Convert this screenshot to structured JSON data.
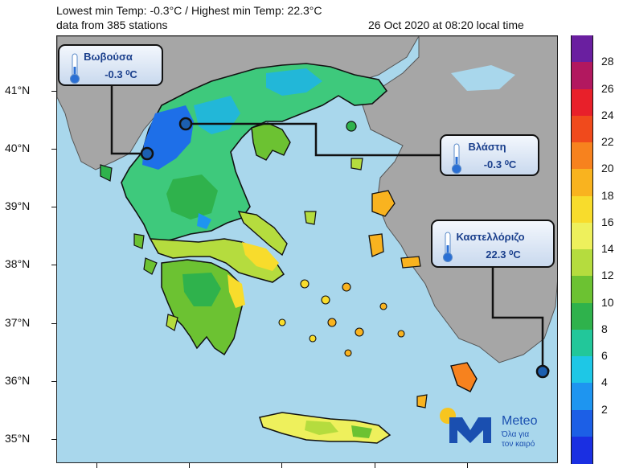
{
  "header": {
    "line1": "Lowest min Temp: -0.3°C / Highest min Temp: 22.3°C",
    "line2": "data from 385 stations",
    "timestamp": "26 Oct 2020 at 08:20 local time"
  },
  "axis": {
    "lat_labels": [
      "41°N",
      "40°N",
      "39°N",
      "38°N",
      "37°N",
      "36°N",
      "35°N"
    ]
  },
  "callouts": [
    {
      "name": "Βωβούσα",
      "value": "-0.3 ⁰C"
    },
    {
      "name": "Βλάστη",
      "value": "-0.3 ⁰C"
    },
    {
      "name": "Καστελλόριζο",
      "value": "22.3 ⁰C"
    }
  ],
  "colorbar": {
    "labels": [
      "28",
      "26",
      "24",
      "22",
      "20",
      "18",
      "16",
      "14",
      "12",
      "10",
      "8",
      "6",
      "4",
      "2"
    ],
    "colors": [
      "#6a1fa0",
      "#b2185f",
      "#e8202a",
      "#f04a1c",
      "#f7821e",
      "#f9b31f",
      "#f8dc2c",
      "#eef05c",
      "#b5dc3e",
      "#6cc232",
      "#2fb24c",
      "#22c79a",
      "#1ec7e6",
      "#1e95f0",
      "#1c5fe6",
      "#1a2fe2"
    ]
  },
  "logo": {
    "brand": "Meteo",
    "tagline_1": "Όλα για",
    "tagline_2": "τον καιρό"
  }
}
